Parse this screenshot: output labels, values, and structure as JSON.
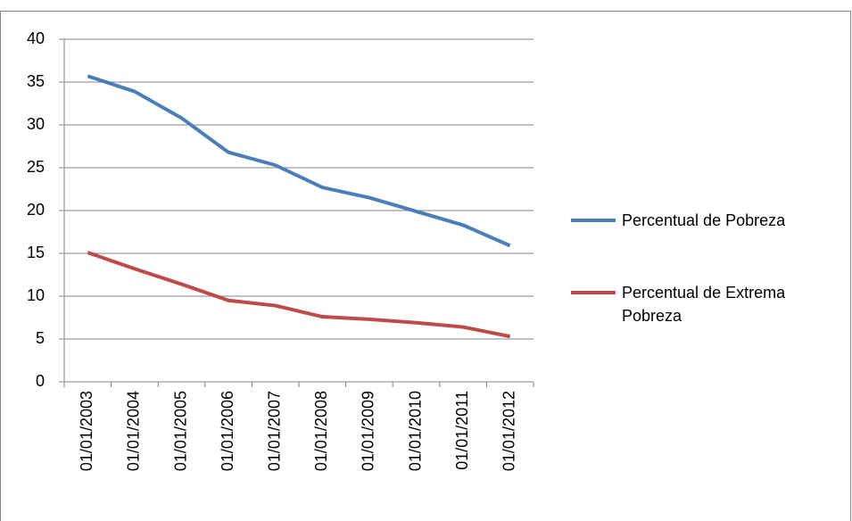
{
  "chart_data": {
    "type": "line",
    "categories": [
      "01/01/2003",
      "01/01/2004",
      "01/01/2005",
      "01/01/2006",
      "01/01/2007",
      "01/01/2008",
      "01/01/2009",
      "01/01/2010",
      "01/01/2011",
      "01/01/2012"
    ],
    "series": [
      {
        "name": "Percentual de Pobreza",
        "color": "#4a7ebb",
        "values": [
          35.7,
          33.9,
          30.8,
          26.8,
          25.3,
          22.7,
          21.5,
          19.9,
          18.3,
          15.9
        ]
      },
      {
        "name": "Percentual de Extrema Pobreza",
        "color": "#be4b48",
        "values": [
          15.1,
          13.2,
          11.4,
          9.5,
          8.9,
          7.6,
          7.3,
          6.9,
          6.4,
          5.3
        ]
      }
    ],
    "ylim": [
      0,
      40
    ],
    "yticks": [
      0,
      5,
      10,
      15,
      20,
      25,
      30,
      35,
      40
    ],
    "grid": true,
    "legend": "right"
  }
}
